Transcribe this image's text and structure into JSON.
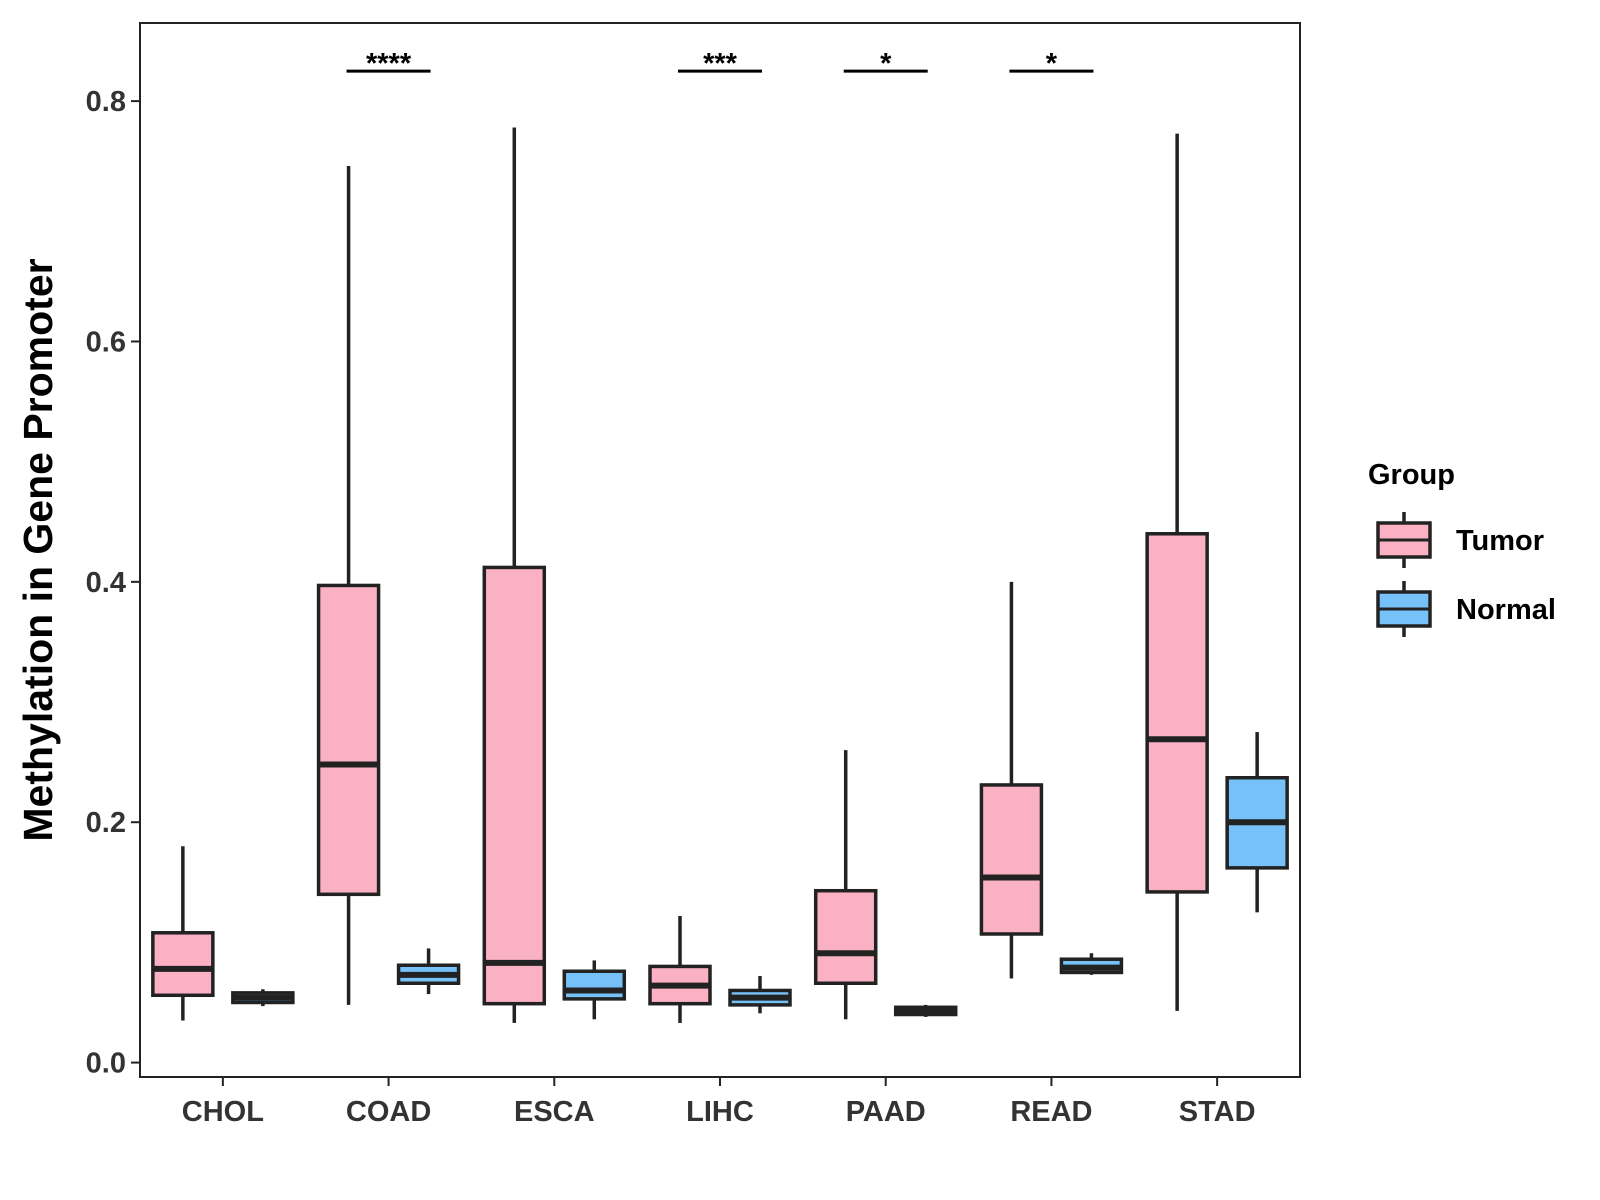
{
  "chart_data": {
    "type": "boxplot",
    "title": "",
    "xlabel": "",
    "ylabel": "Methylation in Gene Promoter",
    "ylim": [
      -0.012,
      0.865
    ],
    "yticks": [
      0.0,
      0.2,
      0.4,
      0.6,
      0.8
    ],
    "ytick_labels": [
      "0.0",
      "0.2",
      "0.4",
      "0.6",
      "0.8"
    ],
    "grid": false,
    "legend_position": "right",
    "categories": [
      "CHOL",
      "COAD",
      "ESCA",
      "LIHC",
      "PAAD",
      "READ",
      "STAD"
    ],
    "series": [
      {
        "name": "Tumor",
        "color": "#FBB1C4",
        "boxes": [
          {
            "whisker_low": 0.035,
            "q1": 0.056,
            "median": 0.078,
            "q3": 0.108,
            "whisker_high": 0.18
          },
          {
            "whisker_low": 0.048,
            "q1": 0.14,
            "median": 0.248,
            "q3": 0.397,
            "whisker_high": 0.746
          },
          {
            "whisker_low": 0.033,
            "q1": 0.049,
            "median": 0.083,
            "q3": 0.412,
            "whisker_high": 0.778
          },
          {
            "whisker_low": 0.033,
            "q1": 0.049,
            "median": 0.064,
            "q3": 0.08,
            "whisker_high": 0.122
          },
          {
            "whisker_low": 0.036,
            "q1": 0.066,
            "median": 0.091,
            "q3": 0.143,
            "whisker_high": 0.26
          },
          {
            "whisker_low": 0.07,
            "q1": 0.107,
            "median": 0.154,
            "q3": 0.231,
            "whisker_high": 0.4
          },
          {
            "whisker_low": 0.043,
            "q1": 0.142,
            "median": 0.269,
            "q3": 0.44,
            "whisker_high": 0.773
          }
        ]
      },
      {
        "name": "Normal",
        "color": "#75C1F8",
        "boxes": [
          {
            "whisker_low": 0.047,
            "q1": 0.05,
            "median": 0.054,
            "q3": 0.058,
            "whisker_high": 0.061
          },
          {
            "whisker_low": 0.057,
            "q1": 0.066,
            "median": 0.073,
            "q3": 0.081,
            "whisker_high": 0.095
          },
          {
            "whisker_low": 0.036,
            "q1": 0.053,
            "median": 0.06,
            "q3": 0.076,
            "whisker_high": 0.085
          },
          {
            "whisker_low": 0.041,
            "q1": 0.048,
            "median": 0.054,
            "q3": 0.06,
            "whisker_high": 0.072
          },
          {
            "whisker_low": 0.038,
            "q1": 0.04,
            "median": 0.043,
            "q3": 0.046,
            "whisker_high": 0.048
          },
          {
            "whisker_low": 0.073,
            "q1": 0.075,
            "median": 0.079,
            "q3": 0.086,
            "whisker_high": 0.091
          },
          {
            "whisker_low": 0.125,
            "q1": 0.162,
            "median": 0.2,
            "q3": 0.237,
            "whisker_high": 0.275
          }
        ]
      }
    ],
    "significance": [
      {
        "category": "CHOL",
        "label": ""
      },
      {
        "category": "COAD",
        "label": "****"
      },
      {
        "category": "ESCA",
        "label": ""
      },
      {
        "category": "LIHC",
        "label": "***"
      },
      {
        "category": "PAAD",
        "label": "*"
      },
      {
        "category": "READ",
        "label": "*"
      },
      {
        "category": "STAD",
        "label": ""
      }
    ],
    "significance_level": 0.825,
    "legend": {
      "title": "Group",
      "entries": [
        {
          "label": "Tumor",
          "color": "#FBB1C4"
        },
        {
          "label": "Normal",
          "color": "#75C1F8"
        }
      ]
    }
  }
}
